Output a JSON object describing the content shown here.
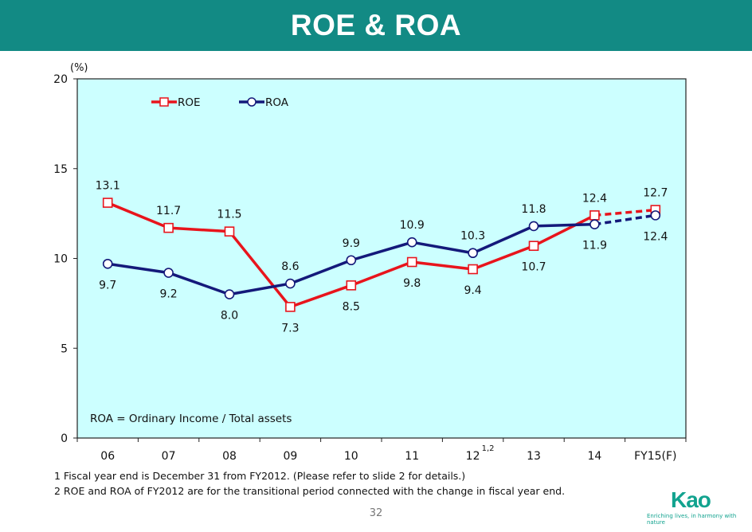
{
  "header": {
    "title": "ROE & ROA"
  },
  "chart_data": {
    "type": "line",
    "title": "ROE & ROA",
    "ylabel": "(%)",
    "xlabel": "",
    "ylim": [
      0,
      20
    ],
    "yticks": [
      0,
      5,
      10,
      15,
      20
    ],
    "categories": [
      "06",
      "07",
      "08",
      "09",
      "10",
      "11",
      "12",
      "13",
      "14",
      "FY15(F)"
    ],
    "category_superscripts": {
      "12": "1,2"
    },
    "series": [
      {
        "name": "ROE",
        "color": "#e8141c",
        "marker": "square",
        "values": [
          13.1,
          11.7,
          11.5,
          7.3,
          8.5,
          9.8,
          9.4,
          10.7,
          12.4,
          12.7
        ],
        "labels": [
          "13.1",
          "11.7",
          "11.5",
          "7.3",
          "8.5",
          "9.8",
          "9.4",
          "10.7",
          "12.4",
          "12.7"
        ],
        "forecast_from_index": 8
      },
      {
        "name": "ROA",
        "color": "#14197a",
        "marker": "circle",
        "values": [
          9.7,
          9.2,
          8.0,
          8.6,
          9.9,
          10.9,
          10.3,
          11.8,
          11.9,
          12.4
        ],
        "labels": [
          "9.7",
          "9.2",
          "8.0",
          "8.6",
          "9.9",
          "10.9",
          "10.3",
          "11.8",
          "11.9",
          "12.4"
        ],
        "forecast_from_index": 8
      }
    ],
    "annotation": "ROA = Ordinary Income / Total assets",
    "plot_background": "#ccffff",
    "legend": "top-left",
    "grid": false
  },
  "footnotes": [
    "1 Fiscal year end is December 31 from FY2012. (Please refer to slide 2 for details.)",
    "2 ROE and ROA of FY2012 are for the transitional period connected with the change in fiscal year end."
  ],
  "page_number": "32",
  "brand": {
    "logo": "Kao",
    "tagline": "Enriching lives, in harmony with nature"
  }
}
